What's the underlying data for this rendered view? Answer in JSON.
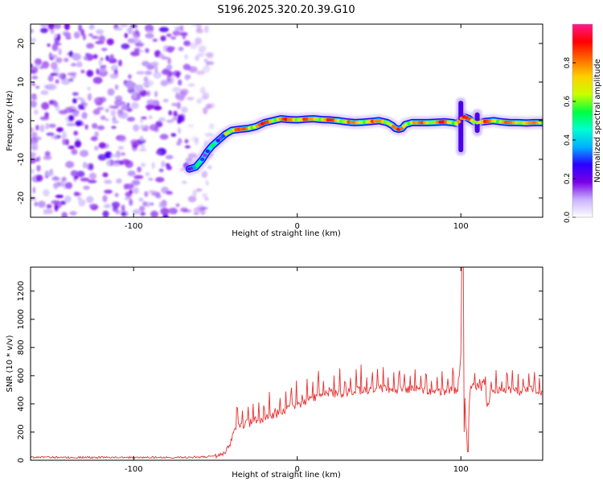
{
  "title": "S196.2025.320.20.39.G10",
  "chart_data": [
    {
      "type": "heatmap",
      "name": "spectrogram",
      "xlabel": "Height of straight line (km)",
      "ylabel": "Frequency (Hz)",
      "xlim": [
        -163,
        150
      ],
      "ylim": [
        -25,
        25
      ],
      "xticks": [
        -100,
        0,
        100
      ],
      "yticks": [
        -20,
        -10,
        0,
        10,
        20
      ],
      "colorbar": {
        "label": "Normalized spectral amplitude",
        "range": [
          0,
          1
        ],
        "ticks": [
          0.0,
          0.2,
          0.4,
          0.6,
          0.8
        ],
        "colors": [
          "#ffffff",
          "#c9b3ff",
          "#7a00e6",
          "#2b00ff",
          "#00b0ff",
          "#00ffd0",
          "#00ff40",
          "#c8ff00",
          "#ffd000",
          "#ff6a00",
          "#ff0000",
          "#ff1a8c"
        ]
      },
      "noise_region_x": [
        -163,
        -58
      ],
      "ridge": {
        "x": [
          -66,
          -62,
          -58,
          -55,
          -52,
          -48,
          -44,
          -40,
          -35,
          -30,
          -25,
          -20,
          -15,
          -10,
          -5,
          0,
          5,
          10,
          15,
          20,
          25,
          30,
          35,
          40,
          45,
          50,
          55,
          58,
          60,
          62,
          64,
          66,
          70,
          75,
          80,
          85,
          90,
          95,
          98,
          100,
          102,
          105,
          108,
          110,
          115,
          120,
          125,
          130,
          135,
          140,
          145,
          150
        ],
        "y": [
          -12.5,
          -12,
          -10,
          -8,
          -6.5,
          -5,
          -3.5,
          -2.5,
          -2.2,
          -2,
          -1.5,
          -0.5,
          0,
          0.5,
          0.3,
          0.2,
          0.4,
          0.5,
          0.3,
          0.2,
          0,
          -0.3,
          -0.5,
          -0.4,
          -0.2,
          0,
          -0.5,
          -1.2,
          -2,
          -2.2,
          -2,
          -1,
          -0.5,
          -0.5,
          -0.5,
          -0.4,
          -0.3,
          -0.5,
          -0.8,
          0.5,
          1,
          0.5,
          -0.3,
          -0.5,
          -0.2,
          0,
          -0.3,
          -0.5,
          -0.5,
          -0.6,
          -0.5,
          -0.5
        ]
      },
      "disturbances": [
        {
          "x": 100,
          "y_range": [
            -9,
            6
          ]
        },
        {
          "x": 110,
          "y_range": [
            -4,
            3
          ]
        }
      ]
    },
    {
      "type": "line",
      "name": "snr",
      "xlabel": "Height of straight line (km)",
      "ylabel": "SNR (10 * v/v)",
      "xlim": [
        -163,
        150
      ],
      "ylim": [
        0,
        1370
      ],
      "xticks": [
        -100,
        0,
        100
      ],
      "yticks": [
        0,
        200,
        400,
        600,
        800,
        1000,
        1200
      ],
      "color": "#e83030",
      "series": [
        {
          "name": "SNR",
          "x": [
            -163,
            -140,
            -120,
            -100,
            -80,
            -60,
            -50,
            -45,
            -42,
            -40,
            -38,
            -35,
            -30,
            -25,
            -20,
            -15,
            -10,
            -5,
            0,
            5,
            10,
            15,
            20,
            25,
            30,
            35,
            40,
            45,
            50,
            55,
            60,
            65,
            70,
            75,
            80,
            85,
            90,
            95,
            98,
            100,
            101,
            102,
            103,
            104,
            105,
            106,
            108,
            110,
            112,
            114,
            116,
            118,
            120,
            125,
            130,
            135,
            140,
            145,
            150
          ],
          "values": [
            20,
            20,
            20,
            20,
            20,
            22,
            30,
            50,
            90,
            150,
            210,
            240,
            260,
            285,
            300,
            320,
            340,
            370,
            390,
            410,
            440,
            470,
            480,
            470,
            480,
            490,
            500,
            500,
            510,
            500,
            500,
            510,
            500,
            500,
            490,
            500,
            480,
            500,
            500,
            750,
            1300,
            600,
            250,
            180,
            400,
            500,
            560,
            520,
            460,
            600,
            380,
            470,
            500,
            510,
            500,
            490,
            500,
            500,
            480
          ]
        }
      ]
    }
  ]
}
